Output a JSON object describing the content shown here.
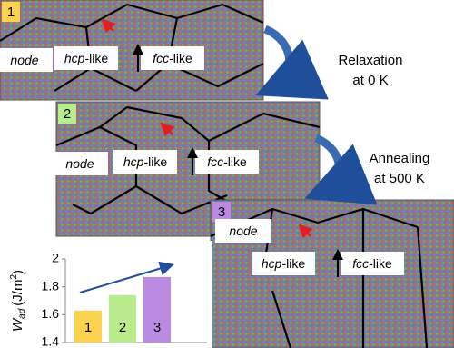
{
  "panels": [
    {
      "number": "1",
      "labels": [
        {
          "italic": "node"
        },
        {
          "italic": "hcp",
          "plain": "-like"
        },
        {
          "italic": "fcc",
          "plain": "-like"
        }
      ]
    },
    {
      "number": "2",
      "labels": [
        {
          "italic": "node"
        },
        {
          "italic": "hcp",
          "plain": "-like"
        },
        {
          "italic": "fcc",
          "plain": "-like"
        }
      ]
    },
    {
      "number": "3",
      "labels": [
        {
          "italic": "node"
        },
        {
          "italic": "hcp",
          "plain": "-like"
        },
        {
          "italic": "fcc",
          "plain": "-like"
        }
      ]
    }
  ],
  "steps": [
    {
      "line1": "Relaxation",
      "line2": "at 0 K"
    },
    {
      "line1": "Annealing",
      "line2": "at 500 K"
    }
  ],
  "chart_data": {
    "type": "bar",
    "y_label": {
      "main": "W",
      "sub": "ad",
      "unit": "(J/m",
      "sup": "2",
      "close": ")"
    },
    "categories": [
      "1",
      "2",
      "3"
    ],
    "values": [
      1.63,
      1.74,
      1.87
    ],
    "colors": [
      "#fbd24e",
      "#b9ec8c",
      "#b98ae0"
    ],
    "ylim": [
      1.4,
      2
    ],
    "yticks": [
      1.4,
      1.6,
      1.8,
      2
    ]
  }
}
